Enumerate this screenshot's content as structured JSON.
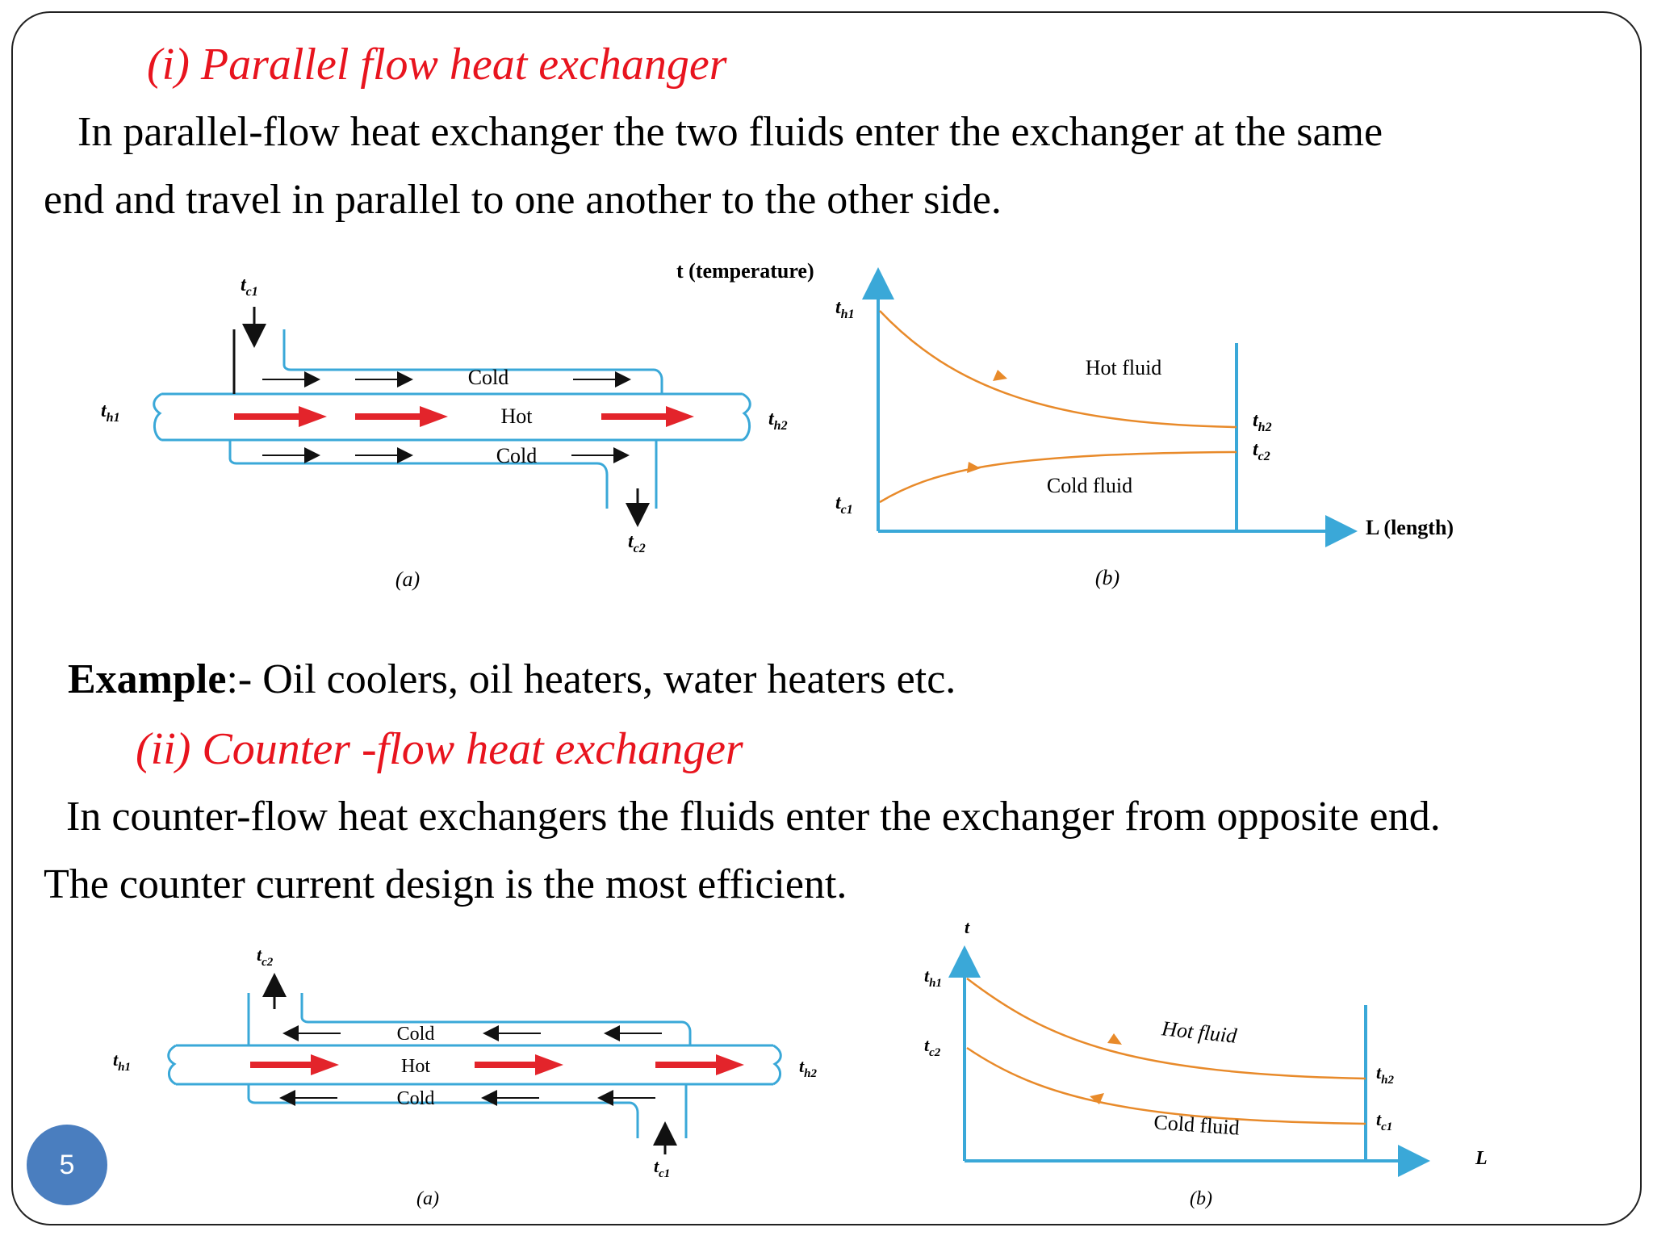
{
  "heading1": "(i)  Parallel flow heat exchanger",
  "para1_line1": "In parallel-flow heat exchanger the two fluids enter the exchanger at the same",
  "para1_line2": "end and travel in parallel to one another to the other side.",
  "example_label": "Example",
  "example_text": ":-  Oil coolers, oil heaters, water heaters etc.",
  "heading2": "(ii)  Counter -flow heat exchanger",
  "para2_line1": "In counter-flow heat exchangers the fluids enter the exchanger from opposite end.",
  "para2_line2": "The counter current design is the most efficient.",
  "page_number": "5",
  "colors": {
    "heading": "#e8141e",
    "pipe": "#3aa8d8",
    "curve": "#e88a2a",
    "arrow_hot": "#e3242b",
    "badge": "#4a7ebf"
  },
  "fig1": {
    "caption_a": "(a)",
    "caption_b": "(b)",
    "tc1": "t",
    "tc1_sub": "c1",
    "tc2": "t",
    "tc2_sub": "c2",
    "th1": "t",
    "th1_sub": "h1",
    "th2": "t",
    "th2_sub": "h2",
    "cold": "Cold",
    "hot": "Hot",
    "y_axis": "t (temperature)",
    "x_axis": "L (length)",
    "hot_fluid": "Hot fluid",
    "cold_fluid": "Cold fluid"
  },
  "fig2": {
    "caption_a": "(a)",
    "caption_b": "(b)",
    "tc1": "t",
    "tc1_sub": "c1",
    "tc2": "t",
    "tc2_sub": "c2",
    "th1": "t",
    "th1_sub": "h1",
    "th2": "t",
    "th2_sub": "h2",
    "cold": "Cold",
    "hot": "Hot",
    "y_axis": "t",
    "x_axis": "L",
    "hot_fluid": "Hot fluid",
    "cold_fluid": "Cold fluid"
  }
}
